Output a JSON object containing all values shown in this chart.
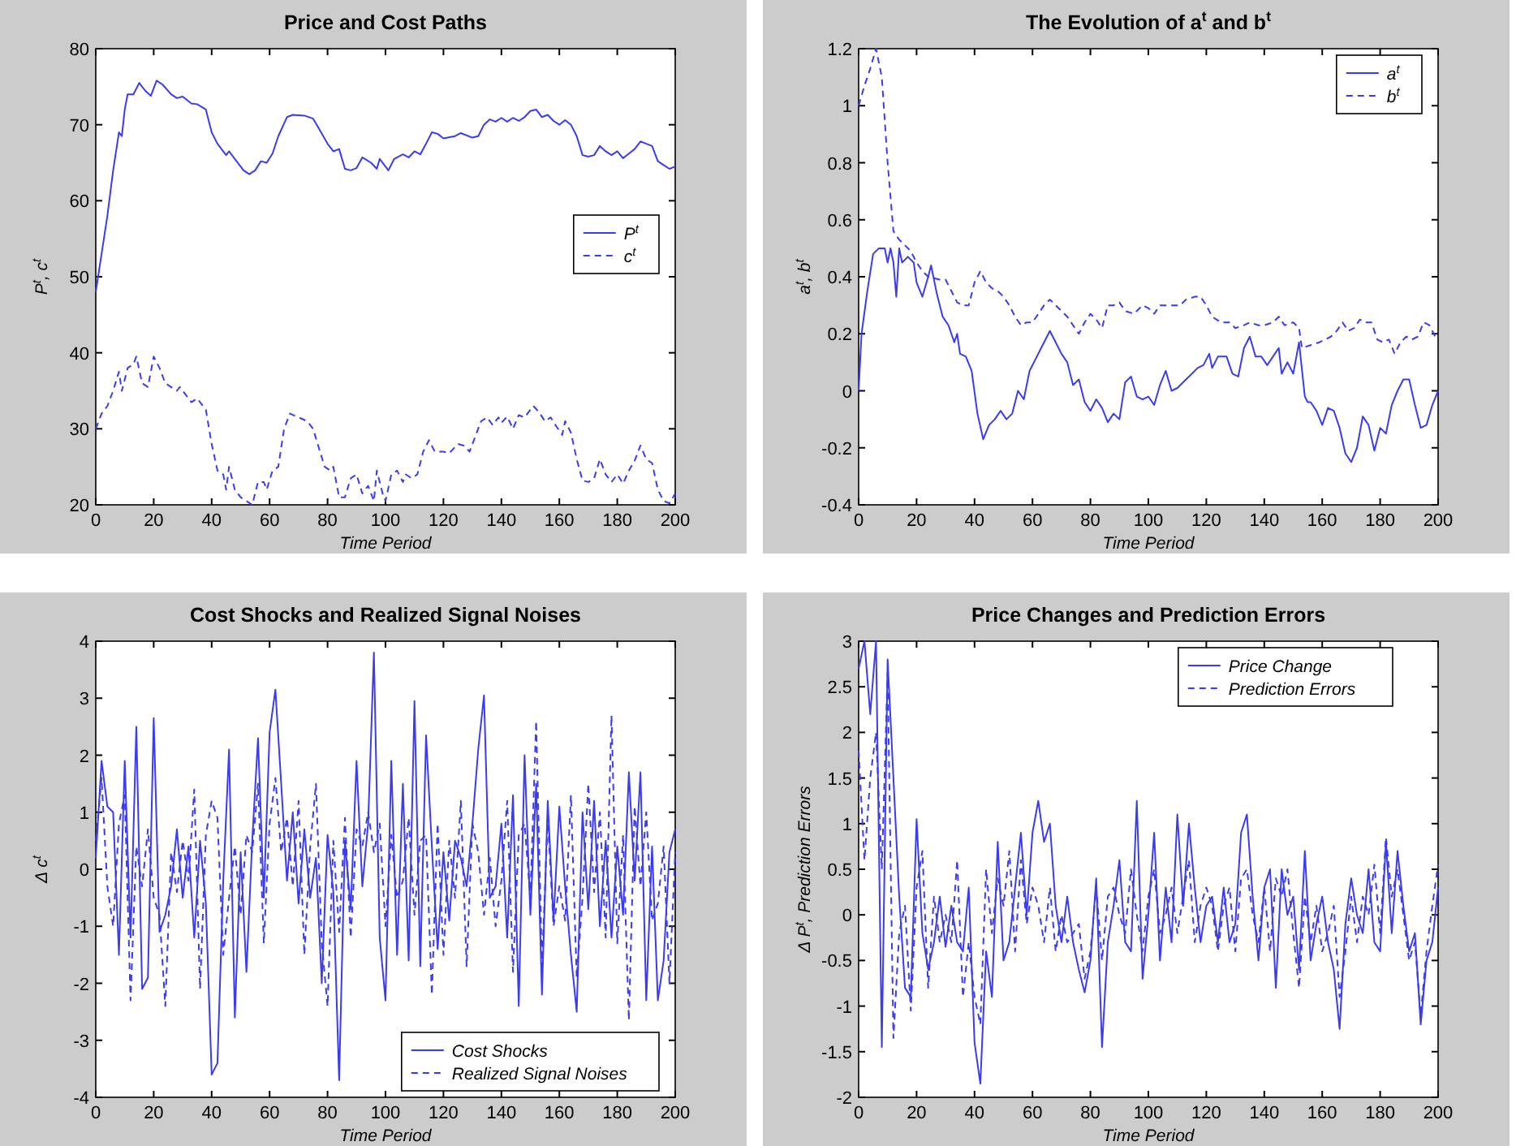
{
  "chart_data": [
    {
      "type": "line",
      "title": "Price and Cost Paths",
      "xlabel": "Time Period",
      "ylabel": "P$^{t}$, c$^{t}$",
      "xlim": [
        0,
        200
      ],
      "ylim": [
        20,
        80
      ],
      "xticks": [
        0,
        20,
        40,
        60,
        80,
        100,
        120,
        140,
        160,
        180,
        200
      ],
      "yticks": [
        20,
        30,
        40,
        50,
        60,
        70,
        80
      ],
      "legend": "right",
      "series": [
        {
          "name": "P$^{t}$",
          "color": "#3b3bf0",
          "line_style": "solid",
          "x": [
            0,
            2,
            4,
            6,
            8,
            9,
            10,
            11,
            13,
            15,
            17,
            19,
            21,
            23,
            26,
            28,
            30,
            33,
            35,
            38,
            40,
            42,
            45,
            46,
            48,
            51,
            53,
            55,
            57,
            59,
            61,
            63,
            66,
            68,
            72,
            75,
            77,
            80,
            82,
            84,
            86,
            88,
            90,
            92,
            95,
            97,
            98,
            100,
            101,
            103,
            106,
            108,
            110,
            112,
            114,
            116,
            118,
            120,
            124,
            126,
            130,
            132,
            134,
            136,
            138,
            140,
            142,
            144,
            146,
            148,
            150,
            152,
            154,
            156,
            158,
            160,
            162,
            164,
            166,
            168,
            170,
            172,
            174,
            176,
            178,
            180,
            182,
            184,
            186,
            188,
            190,
            192,
            194,
            196,
            198,
            200
          ],
          "values": [
            48,
            53,
            58,
            64,
            69,
            68.5,
            72,
            74,
            74,
            75.5,
            74.5,
            73.8,
            75.8,
            75.3,
            74,
            73.5,
            73.7,
            72.8,
            72.7,
            72,
            69,
            67.5,
            66,
            66.5,
            65.5,
            64,
            63.5,
            64,
            65.2,
            65,
            66.2,
            68.5,
            71,
            71.3,
            71.2,
            70.8,
            69.5,
            67.5,
            66.5,
            66.8,
            64.2,
            64,
            64.3,
            65.7,
            65,
            64.2,
            65.5,
            64.5,
            64,
            65.5,
            66.1,
            65.7,
            66.5,
            66.1,
            67.5,
            69,
            68.8,
            68.2,
            68.5,
            68.9,
            68.3,
            68.5,
            70,
            70.7,
            70.4,
            70.9,
            70.4,
            70.9,
            70.5,
            71,
            71.8,
            72,
            71,
            71.3,
            70.5,
            70,
            70.6,
            70,
            68.5,
            66,
            65.8,
            66,
            67.2,
            66.5,
            66,
            66.5,
            65.6,
            66.2,
            66.8,
            67.8,
            67.5,
            67.2,
            65.2,
            64.7,
            64.2,
            64.5
          ]
        },
        {
          "name": "c$^{t}$",
          "color": "#3b3bf0",
          "line_style": "dashed",
          "x": [
            0,
            2,
            4,
            6,
            8,
            9,
            11,
            13,
            14,
            16,
            18,
            20,
            22,
            24,
            26,
            28,
            29,
            31,
            33,
            35,
            37,
            38,
            40,
            42,
            44,
            45,
            46,
            48,
            50,
            52,
            54,
            56,
            58,
            59,
            61,
            63,
            65,
            67,
            70,
            73,
            75,
            77,
            79,
            81,
            82,
            84,
            86,
            88,
            90,
            92,
            94,
            96,
            97,
            99,
            100,
            102,
            104,
            106,
            107,
            109,
            111,
            113,
            115,
            117,
            120,
            122,
            125,
            127,
            129,
            131,
            133,
            135,
            137,
            139,
            140,
            142,
            144,
            146,
            148,
            151,
            153,
            155,
            157,
            159,
            161,
            162,
            164,
            166,
            168,
            170,
            172,
            174,
            176,
            178,
            180,
            182,
            184,
            186,
            188,
            190,
            192,
            194,
            196,
            198,
            200
          ],
          "values": [
            30,
            32,
            33,
            35,
            37.5,
            35,
            38,
            38.5,
            39.5,
            36,
            35.5,
            39.5,
            38,
            36,
            35.5,
            35,
            35.5,
            34.5,
            33.5,
            34,
            33,
            32.5,
            28,
            24.5,
            24,
            22,
            25,
            22,
            21,
            20.5,
            20,
            23,
            23,
            22,
            24.5,
            25,
            30,
            32,
            31.5,
            31,
            30,
            27.5,
            25,
            24.5,
            25,
            21,
            21,
            23.5,
            24,
            21.5,
            22.5,
            20.5,
            24.5,
            21.5,
            20.5,
            24,
            24.5,
            23,
            24,
            23.5,
            24,
            27,
            28.5,
            27,
            27,
            26.8,
            28,
            27.8,
            27,
            29,
            31,
            31.5,
            30.5,
            31.5,
            30.8,
            31.6,
            30,
            31.8,
            31.5,
            33,
            32.2,
            31,
            31.5,
            30.3,
            29.2,
            31,
            29.5,
            26,
            23.2,
            23,
            23.5,
            26,
            24,
            23,
            24,
            22.8,
            24.5,
            25.8,
            27.8,
            26,
            25.5,
            22,
            20.5,
            20.2,
            21.5
          ]
        }
      ]
    },
    {
      "type": "line",
      "title": "The Evolution of  a$^{t}$ and  b$^{t}$",
      "xlabel": "Time Period",
      "ylabel": "a$^{t}$, b$^{t}$",
      "xlim": [
        0,
        200
      ],
      "ylim": [
        -0.4,
        1.2
      ],
      "xticks": [
        0,
        20,
        40,
        60,
        80,
        100,
        120,
        140,
        160,
        180,
        200
      ],
      "yticks": [
        -0.4,
        -0.2,
        0,
        0.2,
        0.4,
        0.6,
        0.8,
        1,
        1.2
      ],
      "legend": "top right",
      "series": [
        {
          "name": "a$^{t}$",
          "color": "#3b3bf0",
          "line_style": "solid",
          "x": [
            0,
            1,
            3,
            5,
            7,
            9,
            10,
            11,
            12,
            13,
            14,
            15,
            17,
            19,
            20,
            22,
            24,
            25,
            27,
            29,
            31,
            33,
            34,
            35,
            37,
            39,
            41,
            43,
            45,
            47,
            49,
            51,
            53,
            55,
            57,
            59,
            61,
            64,
            66,
            68,
            70,
            72,
            74,
            76,
            78,
            80,
            82,
            84,
            86,
            88,
            90,
            92,
            94,
            96,
            98,
            100,
            102,
            104,
            106,
            108,
            110,
            113,
            115,
            117,
            119,
            121,
            122,
            124,
            127,
            129,
            131,
            133,
            135,
            137,
            139,
            141,
            143,
            145,
            146,
            148,
            150,
            152,
            154,
            155,
            156,
            158,
            160,
            162,
            164,
            166,
            168,
            170,
            172,
            174,
            176,
            178,
            180,
            182,
            184,
            186,
            188,
            190,
            192,
            194,
            196,
            198,
            200
          ],
          "values": [
            0,
            0.2,
            0.35,
            0.48,
            0.5,
            0.5,
            0.45,
            0.5,
            0.45,
            0.33,
            0.5,
            0.45,
            0.47,
            0.45,
            0.38,
            0.33,
            0.4,
            0.44,
            0.34,
            0.26,
            0.23,
            0.17,
            0.2,
            0.13,
            0.12,
            0.07,
            -0.08,
            -0.17,
            -0.12,
            -0.1,
            -0.07,
            -0.1,
            -0.08,
            0,
            -0.03,
            0.07,
            0.11,
            0.17,
            0.21,
            0.17,
            0.13,
            0.1,
            0.02,
            0.04,
            -0.04,
            -0.07,
            -0.03,
            -0.06,
            -0.11,
            -0.08,
            -0.1,
            0.03,
            0.05,
            -0.02,
            -0.03,
            -0.02,
            -0.05,
            0.02,
            0.07,
            0,
            0.01,
            0.04,
            0.06,
            0.08,
            0.09,
            0.13,
            0.08,
            0.12,
            0.12,
            0.06,
            0.05,
            0.15,
            0.19,
            0.12,
            0.12,
            0.09,
            0.12,
            0.15,
            0.06,
            0.1,
            0.06,
            0.17,
            -0.02,
            -0.04,
            -0.04,
            -0.07,
            -0.12,
            -0.06,
            -0.07,
            -0.13,
            -0.22,
            -0.25,
            -0.2,
            -0.09,
            -0.12,
            -0.21,
            -0.13,
            -0.15,
            -0.05,
            0,
            0.04,
            0.04,
            -0.05,
            -0.13,
            -0.12,
            -0.05,
            0
          ]
        },
        {
          "name": "b$^{t}$",
          "color": "#3b3bf0",
          "line_style": "dashed",
          "x": [
            0,
            2,
            4,
            6,
            8,
            10,
            12,
            14,
            16,
            18,
            20,
            22,
            24,
            28,
            30,
            32,
            34,
            36,
            38,
            40,
            42,
            44,
            46,
            48,
            50,
            52,
            54,
            56,
            58,
            60,
            62,
            64,
            66,
            68,
            70,
            72,
            74,
            76,
            78,
            80,
            82,
            84,
            86,
            88,
            90,
            92,
            95,
            98,
            100,
            102,
            104,
            108,
            111,
            113,
            116,
            118,
            120,
            122,
            125,
            128,
            130,
            133,
            135,
            138,
            140,
            143,
            145,
            147,
            150,
            152,
            153,
            156,
            159,
            161,
            163,
            165,
            167,
            169,
            171,
            173,
            175,
            177,
            179,
            181,
            183,
            185,
            187,
            189,
            191,
            193,
            195,
            197,
            199,
            200
          ],
          "values": [
            1,
            1.07,
            1.13,
            1.2,
            1.1,
            0.8,
            0.56,
            0.53,
            0.51,
            0.49,
            0.45,
            0.42,
            0.4,
            0.39,
            0.39,
            0.35,
            0.31,
            0.3,
            0.3,
            0.38,
            0.42,
            0.38,
            0.36,
            0.35,
            0.33,
            0.3,
            0.26,
            0.23,
            0.24,
            0.24,
            0.27,
            0.3,
            0.32,
            0.3,
            0.28,
            0.26,
            0.23,
            0.2,
            0.24,
            0.27,
            0.25,
            0.22,
            0.3,
            0.3,
            0.31,
            0.28,
            0.27,
            0.3,
            0.29,
            0.27,
            0.3,
            0.3,
            0.3,
            0.32,
            0.33,
            0.33,
            0.3,
            0.26,
            0.24,
            0.24,
            0.22,
            0.23,
            0.24,
            0.23,
            0.23,
            0.24,
            0.26,
            0.23,
            0.24,
            0.22,
            0.15,
            0.16,
            0.17,
            0.18,
            0.19,
            0.21,
            0.24,
            0.21,
            0.22,
            0.25,
            0.24,
            0.24,
            0.18,
            0.17,
            0.18,
            0.13,
            0.17,
            0.19,
            0.18,
            0.19,
            0.24,
            0.23,
            0.19,
            0.18
          ]
        }
      ]
    },
    {
      "type": "line",
      "title": "Cost Shocks and Realized Signal Noises",
      "xlabel": "Time Period",
      "ylabel": "Δ c$^{t}$",
      "xlim": [
        0,
        200
      ],
      "ylim": [
        -4,
        4
      ],
      "xticks": [
        0,
        20,
        40,
        60,
        80,
        100,
        120,
        140,
        160,
        180,
        200
      ],
      "yticks": [
        -4,
        -3,
        -2,
        -1,
        0,
        1,
        2,
        3,
        4
      ],
      "legend": "bottom right",
      "x": [
        0,
        2,
        4,
        6,
        8,
        10,
        12,
        14,
        16,
        18,
        20,
        22,
        24,
        26,
        28,
        30,
        32,
        34,
        36,
        38,
        40,
        42,
        44,
        46,
        48,
        50,
        52,
        54,
        56,
        58,
        60,
        62,
        64,
        66,
        68,
        70,
        72,
        74,
        76,
        78,
        80,
        82,
        84,
        86,
        88,
        90,
        92,
        94,
        96,
        98,
        100,
        102,
        104,
        106,
        108,
        110,
        112,
        114,
        116,
        118,
        120,
        122,
        124,
        126,
        128,
        130,
        132,
        134,
        136,
        138,
        140,
        142,
        144,
        146,
        148,
        150,
        152,
        154,
        156,
        158,
        160,
        162,
        164,
        166,
        168,
        170,
        172,
        174,
        176,
        178,
        180,
        182,
        184,
        186,
        188,
        190,
        192,
        194,
        196,
        198,
        200
      ],
      "series": [
        {
          "name": "Cost Shocks",
          "color": "#3b3bf0",
          "line_style": "solid",
          "values": [
            0.2,
            1.9,
            1.1,
            1.0,
            -1.5,
            1.9,
            -1.2,
            2.5,
            -2.1,
            -1.9,
            2.65,
            -1.1,
            -0.8,
            -0.3,
            0.7,
            -0.5,
            0.4,
            -1.2,
            0.5,
            -0.6,
            -3.6,
            -3.4,
            -0.2,
            2.1,
            -2.6,
            0.3,
            -1.8,
            0.5,
            2.3,
            -0.5,
            2.4,
            3.15,
            1.5,
            -0.2,
            1.0,
            -0.6,
            0.7,
            -0.5,
            0.2,
            -2.0,
            0.6,
            -0.4,
            -3.7,
            0.5,
            -0.7,
            1.9,
            -0.3,
            0.8,
            3.8,
            -1.2,
            -2.3,
            1.9,
            -1.5,
            1.5,
            -1.6,
            2.95,
            -1.7,
            2.35,
            0.4,
            -1.4,
            0.3,
            -0.9,
            0.5,
            0.2,
            -0.3,
            0.8,
            2.1,
            3.05,
            -0.5,
            -0.3,
            0.8,
            -1.2,
            1.3,
            -2.4,
            2.0,
            -0.8,
            1.5,
            -2.2,
            1.2,
            -0.9,
            1.1,
            -0.3,
            -1.5,
            -2.5,
            1.0,
            -0.7,
            1.2,
            -1.0,
            0.5,
            -1.2,
            0.4,
            -0.8,
            1.7,
            -0.2,
            1.7,
            -2.3,
            0.4,
            -2.3,
            -1.6,
            0.3,
            0.7
          ]
        },
        {
          "name": "Realized Signal Noises",
          "color": "#3b3bf0",
          "line_style": "dashed",
          "values": [
            0.5,
            1.6,
            -0.3,
            -1.0,
            0.8,
            1.3,
            -2.3,
            0.4,
            -0.3,
            0.7,
            -0.5,
            -0.8,
            -2.4,
            0.3,
            -0.4,
            0.5,
            -0.2,
            1.4,
            -2.1,
            0.6,
            1.2,
            0.9,
            -1.5,
            -0.5,
            0.4,
            -0.8,
            0.6,
            0.3,
            1.5,
            -1.3,
            0.8,
            1.6,
            0.3,
            0.9,
            -0.3,
            1.2,
            -1.5,
            0.4,
            1.5,
            -1.3,
            -2.4,
            0.5,
            -1.1,
            0.9,
            -1.2,
            0.7,
            0.4,
            1.0,
            0.3,
            0.8,
            -1.0,
            0.6,
            -0.5,
            -0.2,
            0.9,
            -0.8,
            0.5,
            0.6,
            -2.2,
            0.8,
            -1.5,
            0.5,
            -0.5,
            1.2,
            -1.7,
            0.8,
            0.3,
            -0.8,
            0.2,
            -1.0,
            -0.2,
            1.2,
            -1.8,
            0.6,
            0.8,
            -0.5,
            2.6,
            -1.7,
            0.9,
            -1.0,
            -0.3,
            -0.9,
            1.3,
            -1.9,
            -0.5,
            1.5,
            -0.4,
            1.0,
            -1.2,
            2.7,
            -1.3,
            0.6,
            -2.65,
            1.1,
            -0.3,
            1.0,
            -0.9,
            -0.6,
            0.4,
            -2.0,
            0.3
          ]
        }
      ]
    },
    {
      "type": "line",
      "title": "Price Changes and Prediction Errors",
      "xlabel": "Time Period",
      "ylabel": "Δ P$^{t}$, Prediction Errors",
      "xlim": [
        0,
        200
      ],
      "ylim": [
        -2,
        3
      ],
      "xticks": [
        0,
        20,
        40,
        60,
        80,
        100,
        120,
        140,
        160,
        180,
        200
      ],
      "yticks": [
        -2,
        -1.5,
        -1,
        -0.5,
        0,
        0.5,
        1,
        1.5,
        2,
        2.5,
        3
      ],
      "legend": "top right",
      "x": [
        0,
        2,
        4,
        6,
        8,
        10,
        12,
        14,
        16,
        18,
        20,
        22,
        24,
        26,
        28,
        30,
        32,
        34,
        36,
        38,
        40,
        42,
        44,
        46,
        48,
        50,
        52,
        54,
        56,
        58,
        60,
        62,
        64,
        66,
        68,
        70,
        72,
        74,
        76,
        78,
        80,
        82,
        84,
        86,
        88,
        90,
        92,
        94,
        96,
        98,
        100,
        102,
        104,
        106,
        108,
        110,
        112,
        114,
        116,
        118,
        120,
        122,
        124,
        126,
        128,
        130,
        132,
        134,
        136,
        138,
        140,
        142,
        144,
        146,
        148,
        150,
        152,
        154,
        156,
        158,
        160,
        162,
        164,
        166,
        168,
        170,
        172,
        174,
        176,
        178,
        180,
        182,
        184,
        186,
        188,
        190,
        192,
        194,
        196,
        198,
        200
      ],
      "series": [
        {
          "name": "Price Change",
          "color": "#3b3bf0",
          "line_style": "solid",
          "values": [
            2.7,
            3.0,
            2.2,
            3.0,
            -1.45,
            2.8,
            1.5,
            0.2,
            -0.8,
            -0.9,
            1.05,
            -0.2,
            -0.6,
            -0.3,
            0.2,
            -0.35,
            0.1,
            -0.3,
            -0.4,
            0.3,
            -1.4,
            -1.85,
            -0.4,
            -0.9,
            0.8,
            -0.5,
            -0.3,
            0.3,
            0.9,
            0.0,
            0.9,
            1.25,
            0.8,
            1.0,
            0.1,
            -0.3,
            0.2,
            -0.3,
            -0.6,
            -0.85,
            -0.5,
            0.4,
            -1.45,
            -0.3,
            0.1,
            0.6,
            -0.3,
            -0.4,
            1.25,
            -0.7,
            0.0,
            0.9,
            -0.5,
            0.3,
            -0.3,
            1.1,
            0.1,
            1.0,
            0.3,
            -0.3,
            0.1,
            0.2,
            -0.3,
            0.3,
            -0.3,
            -0.1,
            0.9,
            1.1,
            0.2,
            -0.5,
            0.3,
            0.5,
            -0.8,
            0.5,
            0.0,
            0.2,
            -0.6,
            0.7,
            -0.5,
            -0.1,
            0.2,
            -0.3,
            -0.6,
            -1.25,
            -0.1,
            0.4,
            0.0,
            -0.2,
            0.5,
            -0.3,
            -0.4,
            0.8,
            -0.2,
            0.7,
            0.1,
            -0.4,
            -0.2,
            -1.2,
            -0.5,
            -0.3,
            0.3
          ]
        },
        {
          "name": "Prediction Errors",
          "color": "#3b3bf0",
          "line_style": "dashed",
          "values": [
            1.8,
            0.6,
            1.5,
            2.0,
            0.5,
            2.65,
            -1.35,
            -0.2,
            0.1,
            -1.05,
            0.3,
            0.7,
            -0.8,
            0.2,
            -0.3,
            0.0,
            -0.3,
            0.6,
            -0.9,
            -0.3,
            -0.9,
            -1.2,
            0.5,
            -0.2,
            0.4,
            0.1,
            0.7,
            -0.4,
            0.6,
            -0.1,
            0.3,
            0.1,
            -0.3,
            0.3,
            -0.4,
            0.0,
            -0.3,
            -0.2,
            -0.1,
            -0.7,
            -0.4,
            0.3,
            -0.5,
            0.2,
            0.3,
            0.0,
            -0.2,
            0.5,
            0.0,
            -0.4,
            0.2,
            0.5,
            -0.2,
            0.0,
            0.3,
            -0.2,
            0.2,
            0.6,
            -0.3,
            0.1,
            0.3,
            0.1,
            -0.4,
            0.1,
            0.3,
            -0.4,
            0.4,
            0.5,
            0.0,
            -0.3,
            0.3,
            -0.4,
            0.4,
            0.2,
            0.5,
            -0.2,
            -0.8,
            0.2,
            -0.3,
            0.1,
            -0.4,
            -0.2,
            0.1,
            -0.9,
            -0.4,
            0.2,
            -0.3,
            0.2,
            0.0,
            0.55,
            -0.2,
            0.85,
            0.2,
            0.5,
            0.0,
            -0.5,
            -0.3,
            -1.1,
            -0.4,
            0.1,
            0.55
          ]
        }
      ]
    }
  ]
}
